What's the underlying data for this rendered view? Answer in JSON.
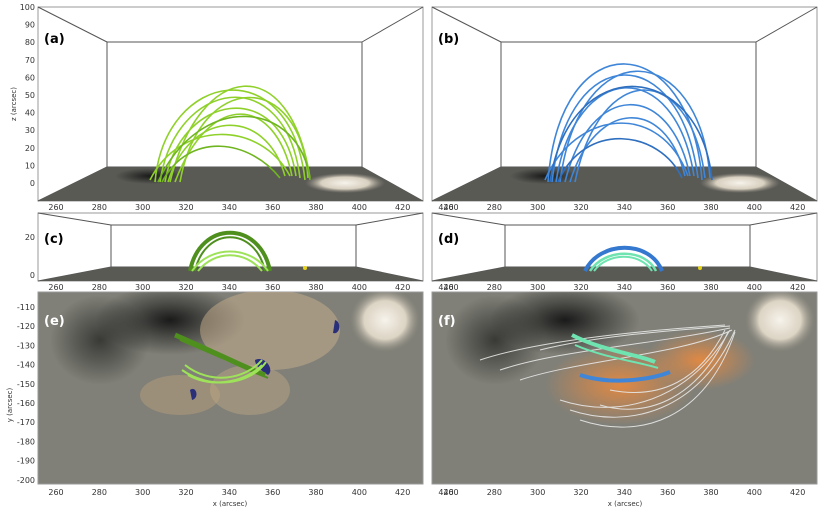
{
  "panels": [
    {
      "id": "a",
      "label": "(a)",
      "label_color": "#000000",
      "loop_color": "#8fd12a"
    },
    {
      "id": "b",
      "label": "(b)",
      "label_color": "#000000",
      "loop_color": "#3f86d8"
    },
    {
      "id": "c",
      "label": "(c)",
      "label_color": "#000000",
      "loop_colors": [
        "#4f8f1e",
        "#9ee25a"
      ]
    },
    {
      "id": "d",
      "label": "(d)",
      "label_color": "#000000",
      "loop_colors": [
        "#3578cf",
        "#6fe3b0"
      ]
    },
    {
      "id": "e",
      "label": "(e)",
      "label_color": "#ffffff",
      "loop_colors": [
        "#4f8f1e",
        "#9ee25a"
      ]
    },
    {
      "id": "f",
      "label": "(f)",
      "label_color": "#ffffff",
      "loop_colors": [
        "#6fe3b0",
        "#3f86d8",
        "#e8e8e8"
      ]
    }
  ],
  "axes": {
    "x_ticks": [
      "260",
      "280",
      "300",
      "320",
      "340",
      "360",
      "380",
      "400",
      "420",
      "440"
    ],
    "z_ticks_top": [
      "100",
      "90",
      "80",
      "70",
      "60",
      "50",
      "40",
      "30",
      "20",
      "10",
      "0"
    ],
    "z_ticks_mid": [
      "20",
      "0"
    ],
    "y_ticks": [
      "-110",
      "-120",
      "-130",
      "-140",
      "-150",
      "-160",
      "-170",
      "-180",
      "-190",
      "-200"
    ],
    "z_label": "z (arcsec)",
    "y_label": "y (arcsec)",
    "x_label": "x (arcsec)"
  },
  "colors": {
    "floor": "#5a5a55",
    "sun_glow": "#ece7dd",
    "box_line": "#555555",
    "magnetogram_bg": "#808078"
  }
}
